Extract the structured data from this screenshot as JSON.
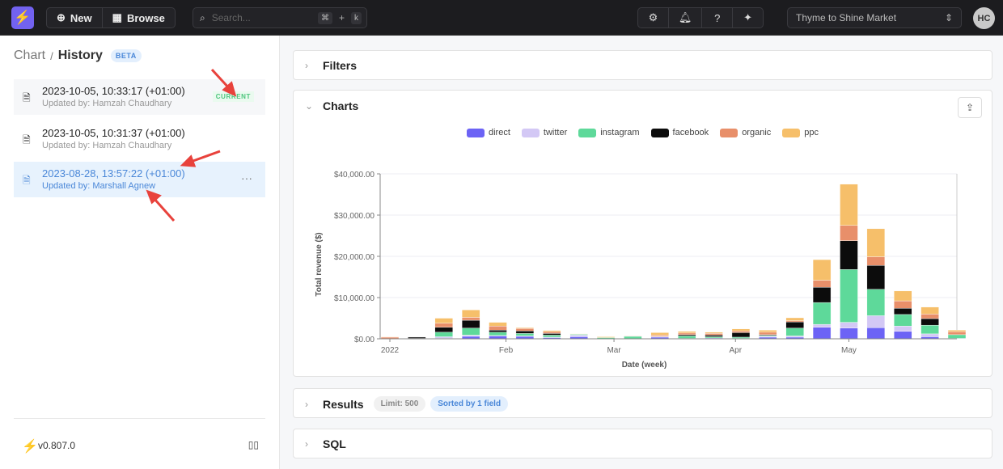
{
  "topbar": {
    "new_label": "New",
    "browse_label": "Browse",
    "search_placeholder": "Search...",
    "kbd_cmd": "⌘",
    "kbd_plus": "+",
    "kbd_k": "k",
    "workspace": "Thyme to Shine Market",
    "avatar": "HC"
  },
  "sidebar": {
    "crumb_parent": "Chart",
    "crumb_sep": "/",
    "crumb_current": "History",
    "beta": "BETA",
    "items": [
      {
        "time": "2023-10-05, 10:33:17 (+01:00)",
        "user": "Updated by: Hamzah Chaudhary",
        "badge": "CURRENT"
      },
      {
        "time": "2023-10-05, 10:31:37 (+01:00)",
        "user": "Updated by: Hamzah Chaudhary"
      },
      {
        "time": "2023-08-28, 13:57:22 (+01:00)",
        "user": "Updated by: Marshall Agnew",
        "more": "···"
      }
    ],
    "version": "v0.807.0"
  },
  "panels": {
    "filters": "Filters",
    "charts": "Charts",
    "results": "Results",
    "limit": "Limit: 500",
    "sorted": "Sorted by 1 field",
    "sql": "SQL"
  },
  "colors": {
    "direct": "#6c63f5",
    "twitter": "#d3c8f5",
    "instagram": "#5ed99a",
    "facebook": "#0c0c0c",
    "organic": "#e88f6a",
    "ppc": "#f6bf6a"
  },
  "chart_data": {
    "type": "bar",
    "stacked": true,
    "xlabel": "Date (week)",
    "ylabel": "Total revenue ($)",
    "ylim": [
      0,
      40000
    ],
    "yticks": [
      "$0.00",
      "$10,000.00",
      "$20,000.00",
      "$30,000.00",
      "$40,000.00"
    ],
    "xticks": [
      {
        "label": "2022",
        "at": 0
      },
      {
        "label": "Feb",
        "at": 4.3
      },
      {
        "label": "Mar",
        "at": 8.3
      },
      {
        "label": "Apr",
        "at": 12.8
      },
      {
        "label": "May",
        "at": 17
      }
    ],
    "series": [
      {
        "name": "direct",
        "values": [
          0,
          100,
          100,
          600,
          700,
          600,
          300,
          500,
          0,
          0,
          400,
          100,
          200,
          100,
          400,
          400,
          2800,
          2600,
          2700,
          1800,
          500,
          100
        ]
      },
      {
        "name": "twitter",
        "values": [
          0,
          0,
          400,
          300,
          100,
          100,
          100,
          400,
          0,
          0,
          100,
          0,
          0,
          0,
          200,
          300,
          700,
          1400,
          2900,
          1300,
          700,
          0
        ]
      },
      {
        "name": "instagram",
        "values": [
          0,
          0,
          1100,
          1700,
          800,
          600,
          500,
          200,
          300,
          600,
          0,
          600,
          300,
          300,
          200,
          1900,
          5300,
          12800,
          6400,
          2800,
          2100,
          900
        ]
      },
      {
        "name": "facebook",
        "values": [
          0,
          300,
          1200,
          1900,
          500,
          600,
          400,
          0,
          0,
          0,
          100,
          300,
          400,
          1100,
          200,
          1500,
          3700,
          7000,
          5800,
          1500,
          1600,
          0
        ]
      },
      {
        "name": "organic",
        "values": [
          400,
          0,
          1000,
          700,
          1000,
          600,
          400,
          0,
          0,
          100,
          300,
          400,
          400,
          400,
          600,
          300,
          1700,
          3700,
          2100,
          1800,
          1100,
          700
        ]
      },
      {
        "name": "ppc",
        "values": [
          100,
          0,
          1200,
          1800,
          900,
          200,
          300,
          100,
          200,
          0,
          600,
          400,
          300,
          500,
          500,
          700,
          5000,
          10000,
          6800,
          2400,
          1700,
          400
        ]
      }
    ]
  }
}
